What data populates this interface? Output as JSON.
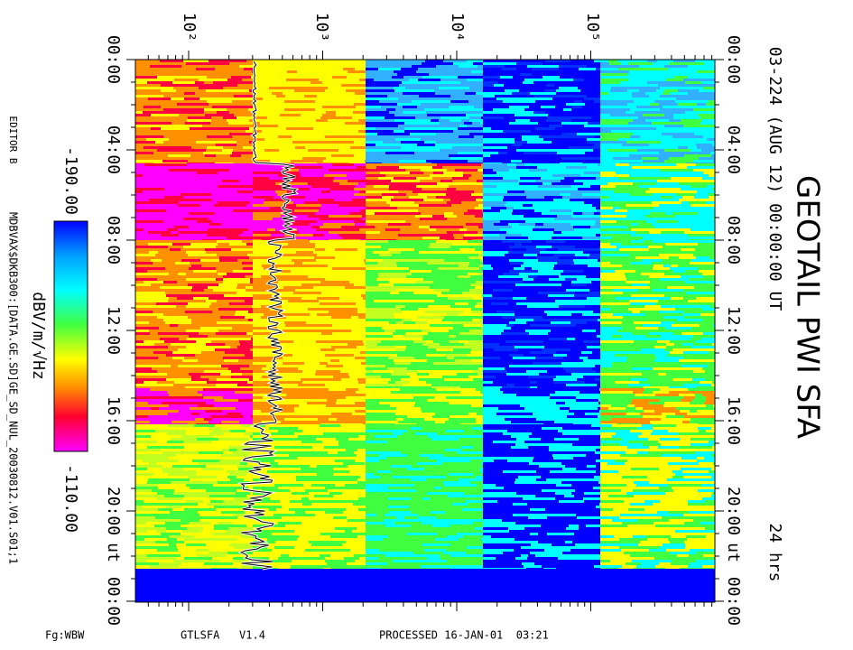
{
  "header": {
    "title": "GEOTAIL PWI SFA",
    "subtitle": "03-224 (AUG 12) 00:00:00 UT",
    "duration": "24 hrs"
  },
  "frequency_axis": {
    "ticks": [
      "10²",
      "10³",
      "10⁴",
      "10⁵"
    ]
  },
  "time_axis": {
    "ticks": [
      "00:00",
      "04:00",
      "08:00",
      "12:00",
      "16:00",
      "20:00",
      "00:00"
    ],
    "unit": "ut"
  },
  "colorbar": {
    "min": "-190.00",
    "max": "-110.00",
    "unit": "dBV/m/√Hz"
  },
  "side": {
    "editor": "EDITOR B",
    "file": "MDBVAX$DKB300:[DATA.GE.SD]GE_SD_NUL_20030812.V01.S01;1"
  },
  "footer": {
    "filter": "Fg:WBW",
    "program": "GTLSFA   V1.4",
    "processed": "PROCESSED 16-JAN-01  03:21"
  }
}
